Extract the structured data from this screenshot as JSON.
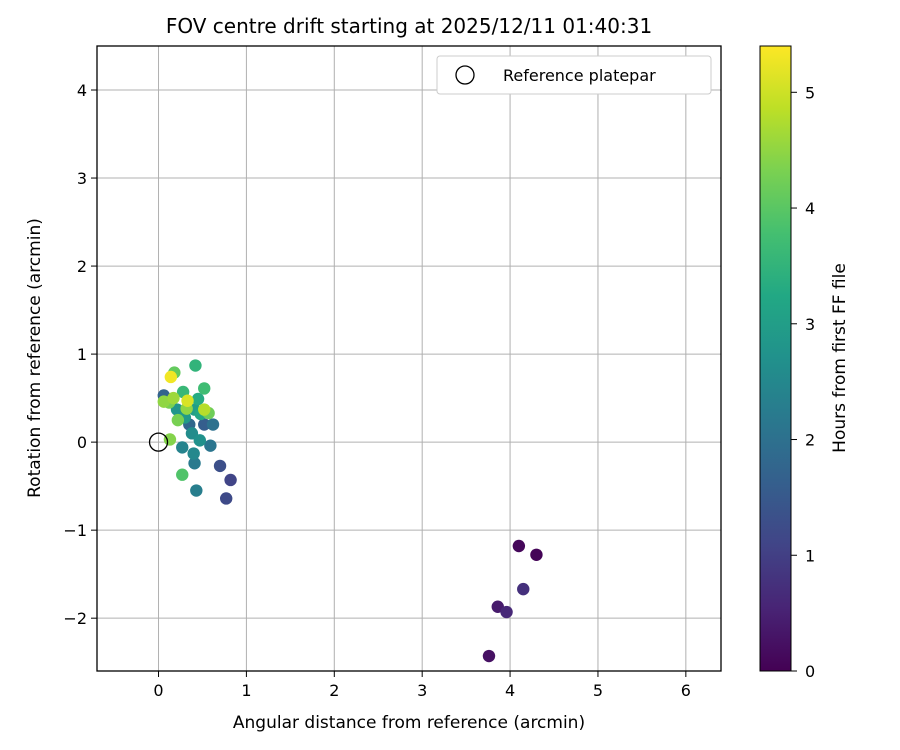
{
  "chart_data": {
    "type": "scatter",
    "title": "FOV centre drift starting at 2025/12/11 01:40:31",
    "xlabel": "Angular distance from reference (arcmin)",
    "ylabel": "Rotation from reference (arcmin)",
    "xlim": [
      -0.7,
      6.4
    ],
    "ylim": [
      -2.6,
      4.5
    ],
    "xticks": [
      0,
      1,
      2,
      3,
      4,
      5,
      6
    ],
    "yticks": [
      -2,
      -1,
      0,
      1,
      2,
      3,
      4
    ],
    "grid": true,
    "legend": {
      "location": "top-right",
      "entries": [
        "Reference platepar"
      ]
    },
    "reference_point": {
      "x": 0,
      "y": 0,
      "label": "Reference platepar"
    },
    "colorbar": {
      "label": "Hours from first FF file",
      "colormap": "viridis",
      "range": [
        0,
        5.4
      ],
      "ticks": [
        0,
        1,
        2,
        3,
        4,
        5
      ]
    },
    "points": [
      {
        "x": 4.3,
        "y": -1.28,
        "c": 0.05
      },
      {
        "x": 4.1,
        "y": -1.18,
        "c": 0.1
      },
      {
        "x": 3.76,
        "y": -2.43,
        "c": 0.25
      },
      {
        "x": 3.86,
        "y": -1.87,
        "c": 0.4
      },
      {
        "x": 3.96,
        "y": -1.93,
        "c": 0.6
      },
      {
        "x": 4.15,
        "y": -1.67,
        "c": 0.75
      },
      {
        "x": 0.82,
        "y": -0.43,
        "c": 1.1
      },
      {
        "x": 0.77,
        "y": -0.64,
        "c": 1.2
      },
      {
        "x": 0.7,
        "y": -0.27,
        "c": 1.3
      },
      {
        "x": 0.52,
        "y": 0.2,
        "c": 1.6
      },
      {
        "x": 0.06,
        "y": 0.53,
        "c": 1.7
      },
      {
        "x": 0.35,
        "y": 0.2,
        "c": 1.8
      },
      {
        "x": 0.62,
        "y": 0.2,
        "c": 2.0
      },
      {
        "x": 0.59,
        "y": -0.04,
        "c": 2.1
      },
      {
        "x": 0.41,
        "y": -0.24,
        "c": 2.2
      },
      {
        "x": 0.43,
        "y": -0.55,
        "c": 2.3
      },
      {
        "x": 0.27,
        "y": -0.06,
        "c": 2.4
      },
      {
        "x": 0.4,
        "y": -0.13,
        "c": 2.5
      },
      {
        "x": 0.38,
        "y": 0.1,
        "c": 2.6
      },
      {
        "x": 0.47,
        "y": 0.02,
        "c": 2.7
      },
      {
        "x": 0.21,
        "y": 0.37,
        "c": 2.8
      },
      {
        "x": 0.3,
        "y": 0.28,
        "c": 2.9
      },
      {
        "x": 0.41,
        "y": 0.37,
        "c": 3.0
      },
      {
        "x": 0.48,
        "y": 0.32,
        "c": 3.2
      },
      {
        "x": 0.45,
        "y": 0.49,
        "c": 3.3
      },
      {
        "x": 0.42,
        "y": 0.87,
        "c": 3.5
      },
      {
        "x": 0.28,
        "y": 0.57,
        "c": 3.6
      },
      {
        "x": 0.52,
        "y": 0.61,
        "c": 3.7
      },
      {
        "x": 0.27,
        "y": -0.37,
        "c": 3.9
      },
      {
        "x": 0.18,
        "y": 0.79,
        "c": 4.1
      },
      {
        "x": 0.57,
        "y": 0.33,
        "c": 4.2
      },
      {
        "x": 0.12,
        "y": 0.45,
        "c": 4.3
      },
      {
        "x": 0.22,
        "y": 0.25,
        "c": 4.3
      },
      {
        "x": 0.13,
        "y": 0.03,
        "c": 4.4
      },
      {
        "x": 0.32,
        "y": 0.38,
        "c": 4.5
      },
      {
        "x": 0.06,
        "y": 0.46,
        "c": 4.5
      },
      {
        "x": 0.17,
        "y": 0.5,
        "c": 4.6
      },
      {
        "x": 0.52,
        "y": 0.37,
        "c": 4.8
      },
      {
        "x": 0.33,
        "y": 0.47,
        "c": 5.1
      },
      {
        "x": 0.14,
        "y": 0.74,
        "c": 5.3
      }
    ]
  }
}
